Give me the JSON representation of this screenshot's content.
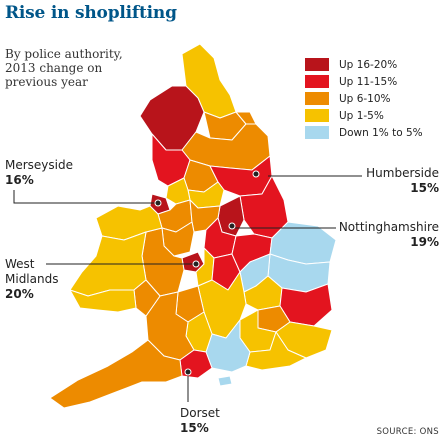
{
  "title": "Rise in shoplifting",
  "subtitle_lines": [
    "By police authority,",
    "2013 change on",
    "previous year"
  ],
  "legend": [
    {
      "label": "Up 16-20%",
      "color": "#b8141b"
    },
    {
      "label": "Up 11-15%",
      "color": "#e3141f"
    },
    {
      "label": "Up 6-10%",
      "color": "#ed8b00"
    },
    {
      "label": "Up 1-5%",
      "color": "#f6c200"
    },
    {
      "label": "Down 1% to 5%",
      "color": "#a8d8ee"
    }
  ],
  "callouts": {
    "merseyside": {
      "name": "Merseyside",
      "value": "16%"
    },
    "humberside": {
      "name": "Humberside",
      "value": "15%"
    },
    "nottinghamshire": {
      "name": "Nottinghamshire",
      "value": "19%"
    },
    "west_midlands": {
      "name_line1": "West",
      "name_line2": "Midlands",
      "value": "20%"
    },
    "dorset": {
      "name": "Dorset",
      "value": "15%"
    }
  },
  "source": "SOURCE: ONS",
  "colors": {
    "title": "#005689",
    "leader_line": "#222222",
    "boundary": "#ffffff"
  }
}
